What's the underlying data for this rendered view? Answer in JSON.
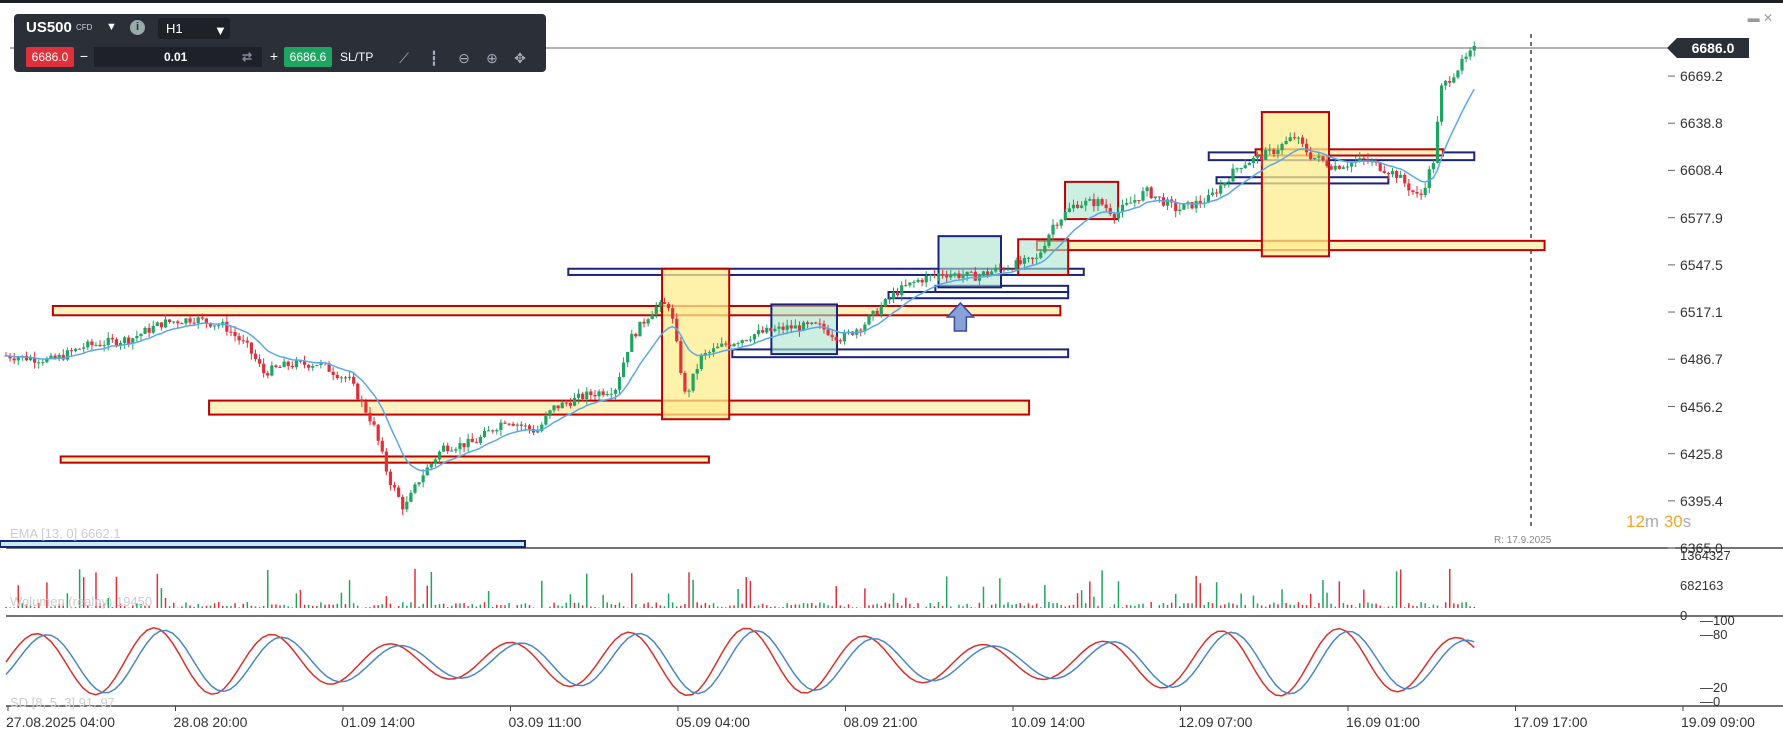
{
  "toolbar": {
    "symbol": "US500",
    "symbol_badge": "CFD",
    "timeframe": "H1",
    "bid": "6686.0",
    "ask": "6686.6",
    "quantity": "0.01",
    "sl_tp_label": "SL/TP",
    "minus_label": "−",
    "plus_label": "+",
    "icons": [
      "chevron-down-icon",
      "info-icon",
      "swap-icon",
      "line-chart-icon",
      "candles-icon",
      "zoom-out-icon",
      "zoom-in-icon",
      "move-icon",
      "minimize-icon",
      "close-icon"
    ]
  },
  "colors": {
    "up": "#1fa562",
    "down": "#e0303c",
    "ema": "#5aa8e8",
    "zone_red": "#c00000",
    "zone_blue": "#1a237e"
  },
  "timer": {
    "minutes": "12",
    "m": "m",
    "seconds": "30",
    "s": "s"
  },
  "range_marker": "R: 17.9.2025",
  "indicators": {
    "ema_label": "EMA [13, 0] 6662.1",
    "volume_label": "Wolumen (realny) 19450",
    "sd_label": "SD [8, 5, 3] 91, 97"
  },
  "chart_data": {
    "type": "candlestick",
    "symbol": "US500",
    "timeframe": "H1",
    "last_price": "6686.0",
    "yaxis": {
      "labels": [
        "6669.2",
        "6638.8",
        "6608.4",
        "6577.9",
        "6547.5",
        "6517.1",
        "6486.7",
        "6456.2",
        "6425.8",
        "6395.4",
        "6365.0"
      ],
      "range": [
        6365.0,
        6700.0
      ]
    },
    "xaxis": {
      "labels": [
        "27.08.2025 04:00",
        "28.08 20:00",
        "01.09 14:00",
        "03.09 11:00",
        "05.09 04:00",
        "08.09 21:00",
        "10.09 14:00",
        "12.09 07:00",
        "16.09 01:00",
        "17.09 17:00",
        "19.09 09:00"
      ]
    },
    "price_path": [
      [
        0,
        6489
      ],
      [
        0.03,
        6486
      ],
      [
        0.05,
        6495
      ],
      [
        0.08,
        6500
      ],
      [
        0.1,
        6510
      ],
      [
        0.12,
        6513
      ],
      [
        0.14,
        6508
      ],
      [
        0.155,
        6494
      ],
      [
        0.165,
        6478
      ],
      [
        0.18,
        6483
      ],
      [
        0.2,
        6484
      ],
      [
        0.22,
        6473
      ],
      [
        0.235,
        6445
      ],
      [
        0.245,
        6410
      ],
      [
        0.255,
        6390
      ],
      [
        0.265,
        6410
      ],
      [
        0.28,
        6430
      ],
      [
        0.3,
        6433
      ],
      [
        0.32,
        6448
      ],
      [
        0.34,
        6440
      ],
      [
        0.35,
        6455
      ],
      [
        0.37,
        6463
      ],
      [
        0.39,
        6468
      ],
      [
        0.4,
        6500
      ],
      [
        0.415,
        6520
      ],
      [
        0.425,
        6522
      ],
      [
        0.435,
        6462
      ],
      [
        0.445,
        6488
      ],
      [
        0.46,
        6496
      ],
      [
        0.48,
        6503
      ],
      [
        0.5,
        6507
      ],
      [
        0.52,
        6508
      ],
      [
        0.535,
        6500
      ],
      [
        0.55,
        6510
      ],
      [
        0.57,
        6530
      ],
      [
        0.585,
        6538
      ],
      [
        0.6,
        6542
      ],
      [
        0.62,
        6540
      ],
      [
        0.64,
        6546
      ],
      [
        0.66,
        6551
      ],
      [
        0.67,
        6573
      ],
      [
        0.685,
        6587
      ],
      [
        0.7,
        6588
      ],
      [
        0.71,
        6580
      ],
      [
        0.73,
        6595
      ],
      [
        0.75,
        6583
      ],
      [
        0.77,
        6590
      ],
      [
        0.79,
        6612
      ],
      [
        0.81,
        6620
      ],
      [
        0.825,
        6630
      ],
      [
        0.835,
        6618
      ],
      [
        0.85,
        6611
      ],
      [
        0.87,
        6615
      ],
      [
        0.89,
        6606
      ],
      [
        0.905,
        6590
      ],
      [
        0.915,
        6618
      ],
      [
        0.918,
        6660
      ],
      [
        0.93,
        6675
      ],
      [
        0.94,
        6686
      ]
    ],
    "ema": {
      "name": "EMA [13, 0]",
      "value": "6662.1"
    },
    "zones": [
      {
        "color": "red",
        "x0": 0.03,
        "x1": 0.675,
        "y0": 6515,
        "y1": 6521
      },
      {
        "color": "red",
        "x0": 0.13,
        "x1": 0.655,
        "y0": 6451,
        "y1": 6460
      },
      {
        "color": "red",
        "x0": 0.035,
        "x1": 0.45,
        "y0": 6420,
        "y1": 6424
      },
      {
        "color": "blue",
        "x0": 0.36,
        "x1": 0.69,
        "y0": 6541,
        "y1": 6545
      },
      {
        "color": "red",
        "x0": 0.66,
        "x1": 0.985,
        "y0": 6557,
        "y1": 6563
      },
      {
        "color": "blue",
        "x0": 0.77,
        "x1": 0.94,
        "y0": 6615,
        "y1": 6620
      },
      {
        "color": "red",
        "x0": 0.8,
        "x1": 0.92,
        "y0": 6618,
        "y1": 6622
      },
      {
        "color": "blue",
        "x0": 0.465,
        "x1": 0.68,
        "y0": 6488,
        "y1": 6493
      },
      {
        "color": "blue",
        "x0": 0.565,
        "x1": 0.68,
        "y0": 6526,
        "y1": 6530
      },
      {
        "color": "blue",
        "x0": 0.595,
        "x1": 0.68,
        "y0": 6530,
        "y1": 6534
      },
      {
        "color": "blue",
        "x0": 0.775,
        "x1": 0.885,
        "y0": 6600,
        "y1": 6604
      }
    ],
    "boxes": [
      {
        "fill": "yellow",
        "border": "red",
        "x0": 0.42,
        "x1": 0.463,
        "y0": 6448,
        "y1": 6545
      },
      {
        "fill": "green",
        "border": "blue",
        "x0": 0.49,
        "x1": 0.532,
        "y0": 6490,
        "y1": 6522
      },
      {
        "fill": "green",
        "border": "blue",
        "x0": 0.597,
        "x1": 0.637,
        "y0": 6533,
        "y1": 6566
      },
      {
        "fill": "green",
        "border": "red",
        "x0": 0.648,
        "x1": 0.68,
        "y0": 6541,
        "y1": 6564
      },
      {
        "fill": "green",
        "border": "red",
        "x0": 0.678,
        "x1": 0.712,
        "y0": 6577,
        "y1": 6601
      },
      {
        "fill": "yellow",
        "border": "red",
        "x0": 0.804,
        "x1": 0.847,
        "y0": 6553,
        "y1": 6646
      }
    ],
    "volume": {
      "name": "Wolumen (realny)",
      "value": "19450",
      "yaxis": [
        "1364327",
        "682163",
        "0"
      ]
    },
    "stochastic": {
      "name": "SD [8, 5, 3]",
      "k": 91,
      "d": 97,
      "yaxis": [
        "100",
        "80",
        "20",
        "0"
      ]
    }
  }
}
